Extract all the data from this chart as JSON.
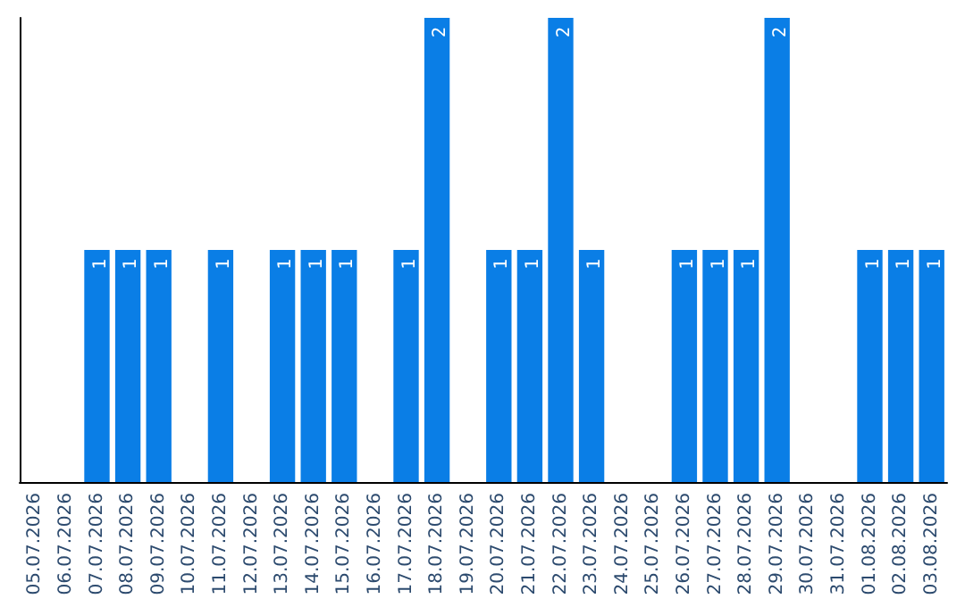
{
  "chart_data": {
    "type": "bar",
    "categories": [
      "05.07.2026",
      "06.07.2026",
      "07.07.2026",
      "08.07.2026",
      "09.07.2026",
      "10.07.2026",
      "11.07.2026",
      "12.07.2026",
      "13.07.2026",
      "14.07.2026",
      "15.07.2026",
      "16.07.2026",
      "17.07.2026",
      "18.07.2026",
      "19.07.2026",
      "20.07.2026",
      "21.07.2026",
      "22.07.2026",
      "23.07.2026",
      "24.07.2026",
      "25.07.2026",
      "26.07.2026",
      "27.07.2026",
      "28.07.2026",
      "29.07.2026",
      "30.07.2026",
      "31.07.2026",
      "01.08.2026",
      "02.08.2026",
      "03.08.2026"
    ],
    "values": [
      0,
      0,
      1,
      1,
      1,
      0,
      1,
      0,
      1,
      1,
      1,
      0,
      1,
      2,
      0,
      1,
      1,
      2,
      1,
      0,
      0,
      1,
      1,
      1,
      2,
      0,
      0,
      1,
      1,
      1
    ],
    "value_labels": [
      null,
      null,
      "1",
      "1",
      "1",
      null,
      "1",
      null,
      "1",
      "1",
      "1",
      null,
      "1",
      "2",
      null,
      "1",
      "1",
      "2",
      "1",
      null,
      null,
      "1",
      "1",
      "1",
      "2",
      null,
      null,
      "1",
      "1",
      "1"
    ],
    "color": "#0a7ee6"
  }
}
